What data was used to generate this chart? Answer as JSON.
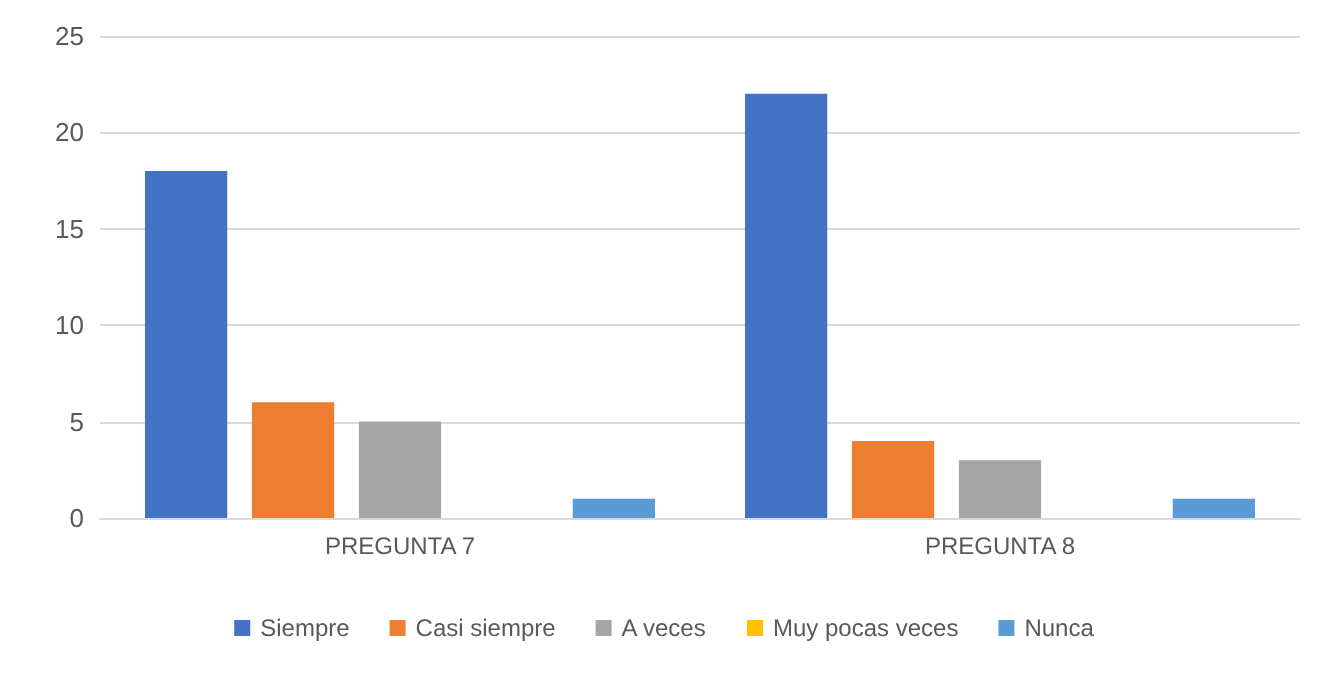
{
  "chart_data": {
    "type": "bar",
    "categories": [
      "PREGUNTA 7",
      "PREGUNTA 8"
    ],
    "series": [
      {
        "name": "Siempre",
        "color": "#4472c4",
        "values": [
          18,
          22
        ]
      },
      {
        "name": "Casi siempre",
        "color": "#ed7d31",
        "values": [
          6,
          4
        ]
      },
      {
        "name": "A veces",
        "color": "#a5a5a5",
        "values": [
          5,
          3
        ]
      },
      {
        "name": "Muy pocas veces",
        "color": "#ffc000",
        "values": [
          0,
          0
        ]
      },
      {
        "name": "Nunca",
        "color": "#5b9bd5",
        "values": [
          1,
          1
        ]
      }
    ],
    "ylim": [
      0,
      25
    ],
    "yticks": [
      0,
      5,
      10,
      15,
      20,
      25
    ],
    "grid": "y",
    "legend": "bottom"
  }
}
